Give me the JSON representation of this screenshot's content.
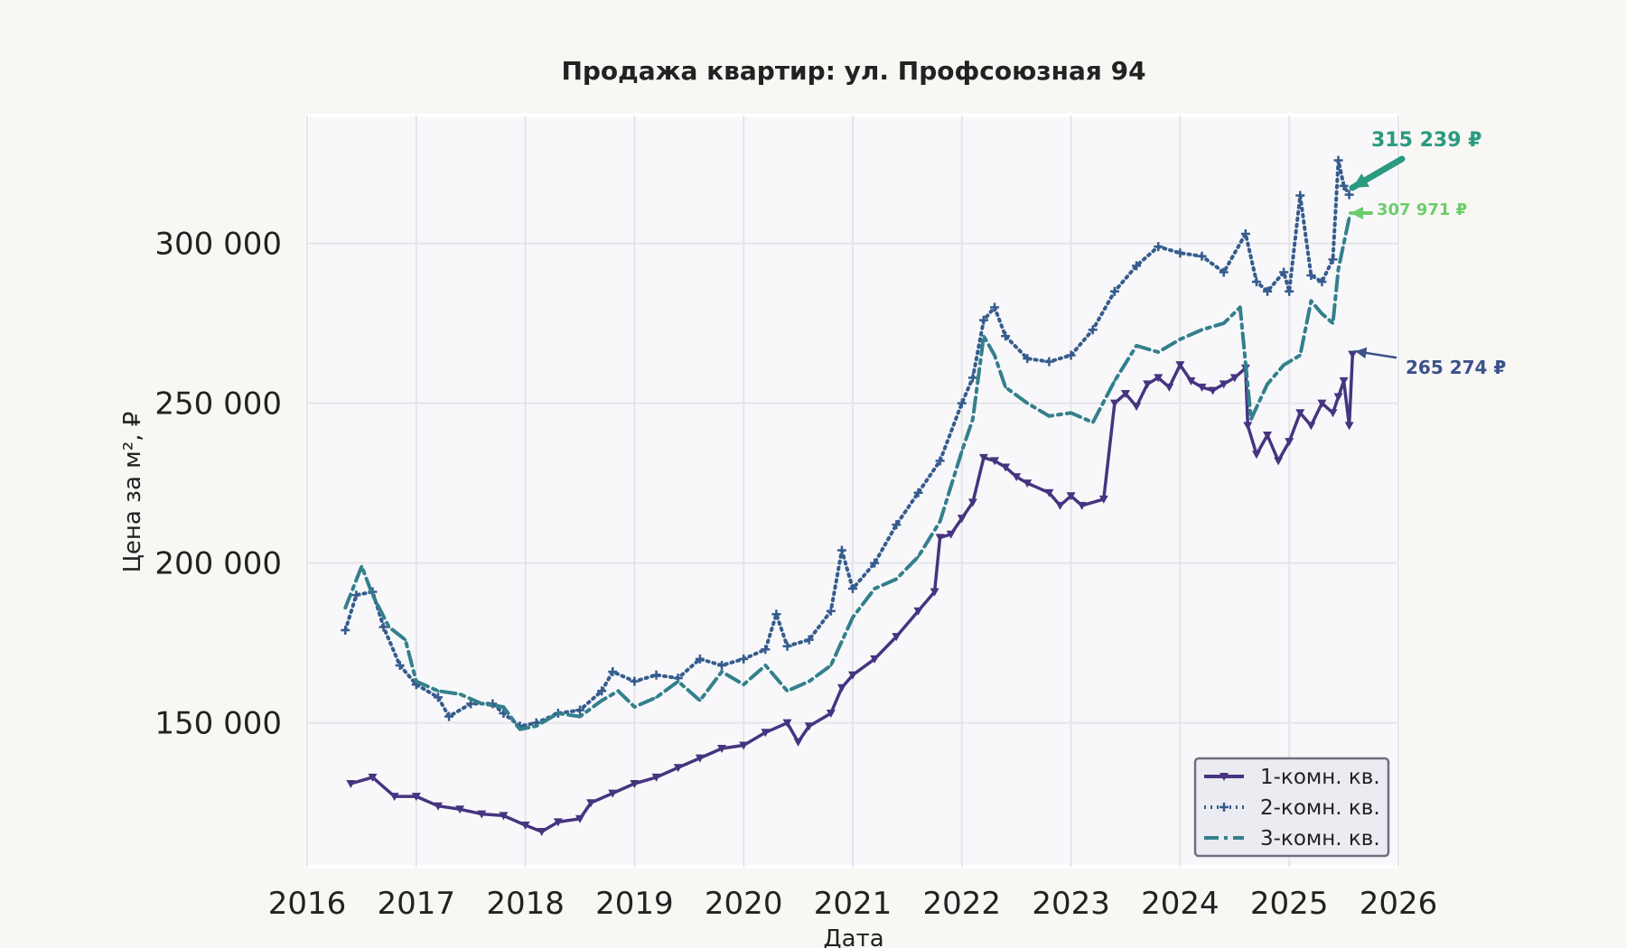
{
  "chart_data": {
    "type": "line",
    "title": "Продажа квартир: ул. Профсоюзная 94",
    "xlabel": "Дата",
    "ylabel": "Цена за м², ₽",
    "xlim": [
      2016,
      2026
    ],
    "ylim": [
      105000,
      340000
    ],
    "x_ticks": [
      "2016",
      "2017",
      "2018",
      "2019",
      "2020",
      "2021",
      "2022",
      "2023",
      "2024",
      "2025",
      "2026"
    ],
    "y_ticks": [
      "150 000",
      "200 000",
      "250 000",
      "300 000"
    ],
    "y_tick_values": [
      150000,
      200000,
      250000,
      300000
    ],
    "grid": true,
    "legend_position": "bottom-right",
    "series": [
      {
        "name": "1-комн. кв.",
        "color": "#463480",
        "style": "solid",
        "marker": "triangle-down",
        "points": [
          [
            2016.4,
            131000
          ],
          [
            2016.6,
            133000
          ],
          [
            2016.8,
            127000
          ],
          [
            2017.0,
            127000
          ],
          [
            2017.2,
            124000
          ],
          [
            2017.4,
            123000
          ],
          [
            2017.6,
            121500
          ],
          [
            2017.8,
            121000
          ],
          [
            2018.0,
            118000
          ],
          [
            2018.15,
            116000
          ],
          [
            2018.3,
            119000
          ],
          [
            2018.5,
            120000
          ],
          [
            2018.6,
            125000
          ],
          [
            2018.8,
            128000
          ],
          [
            2019.0,
            131000
          ],
          [
            2019.2,
            133000
          ],
          [
            2019.4,
            136000
          ],
          [
            2019.6,
            139000
          ],
          [
            2019.8,
            142000
          ],
          [
            2020.0,
            143000
          ],
          [
            2020.2,
            147000
          ],
          [
            2020.4,
            150000
          ],
          [
            2020.5,
            144000
          ],
          [
            2020.6,
            149000
          ],
          [
            2020.8,
            153000
          ],
          [
            2020.9,
            161000
          ],
          [
            2021.0,
            165000
          ],
          [
            2021.2,
            170000
          ],
          [
            2021.4,
            177000
          ],
          [
            2021.6,
            185000
          ],
          [
            2021.75,
            191000
          ],
          [
            2021.8,
            208000
          ],
          [
            2021.9,
            209000
          ],
          [
            2022.0,
            214000
          ],
          [
            2022.1,
            219000
          ],
          [
            2022.2,
            233000
          ],
          [
            2022.3,
            232000
          ],
          [
            2022.4,
            230000
          ],
          [
            2022.5,
            227000
          ],
          [
            2022.6,
            225000
          ],
          [
            2022.8,
            222000
          ],
          [
            2022.9,
            218000
          ],
          [
            2023.0,
            221000
          ],
          [
            2023.1,
            218000
          ],
          [
            2023.3,
            220000
          ],
          [
            2023.4,
            250000
          ],
          [
            2023.5,
            253000
          ],
          [
            2023.6,
            249000
          ],
          [
            2023.7,
            256000
          ],
          [
            2023.8,
            258000
          ],
          [
            2023.9,
            255000
          ],
          [
            2024.0,
            262000
          ],
          [
            2024.1,
            257000
          ],
          [
            2024.2,
            255000
          ],
          [
            2024.3,
            254000
          ],
          [
            2024.4,
            256000
          ],
          [
            2024.5,
            258000
          ],
          [
            2024.6,
            261000
          ],
          [
            2024.62,
            243000
          ],
          [
            2024.7,
            234000
          ],
          [
            2024.8,
            240000
          ],
          [
            2024.9,
            232000
          ],
          [
            2025.0,
            238000
          ],
          [
            2025.1,
            247000
          ],
          [
            2025.2,
            243000
          ],
          [
            2025.3,
            250000
          ],
          [
            2025.4,
            247000
          ],
          [
            2025.45,
            252000
          ],
          [
            2025.5,
            257000
          ],
          [
            2025.55,
            243000
          ],
          [
            2025.58,
            265274
          ]
        ]
      },
      {
        "name": "2-комн. кв.",
        "color": "#365c8d",
        "style": "dotted",
        "marker": "plus",
        "points": [
          [
            2016.35,
            179000
          ],
          [
            2016.45,
            190000
          ],
          [
            2016.6,
            191000
          ],
          [
            2016.7,
            180000
          ],
          [
            2016.85,
            168000
          ],
          [
            2017.0,
            162000
          ],
          [
            2017.2,
            158000
          ],
          [
            2017.3,
            152000
          ],
          [
            2017.5,
            156000
          ],
          [
            2017.7,
            156000
          ],
          [
            2017.8,
            153000
          ],
          [
            2017.95,
            149000
          ],
          [
            2018.1,
            150000
          ],
          [
            2018.3,
            153000
          ],
          [
            2018.5,
            154000
          ],
          [
            2018.7,
            160000
          ],
          [
            2018.8,
            166000
          ],
          [
            2019.0,
            163000
          ],
          [
            2019.2,
            165000
          ],
          [
            2019.4,
            164000
          ],
          [
            2019.6,
            170000
          ],
          [
            2019.8,
            168000
          ],
          [
            2020.0,
            170000
          ],
          [
            2020.2,
            173000
          ],
          [
            2020.3,
            184000
          ],
          [
            2020.4,
            174000
          ],
          [
            2020.6,
            176000
          ],
          [
            2020.8,
            185000
          ],
          [
            2020.9,
            204000
          ],
          [
            2021.0,
            192000
          ],
          [
            2021.2,
            200000
          ],
          [
            2021.4,
            212000
          ],
          [
            2021.6,
            222000
          ],
          [
            2021.8,
            232000
          ],
          [
            2022.0,
            250000
          ],
          [
            2022.1,
            258000
          ],
          [
            2022.2,
            276000
          ],
          [
            2022.3,
            280000
          ],
          [
            2022.4,
            271000
          ],
          [
            2022.6,
            264000
          ],
          [
            2022.8,
            263000
          ],
          [
            2023.0,
            265000
          ],
          [
            2023.2,
            273000
          ],
          [
            2023.4,
            285000
          ],
          [
            2023.6,
            293000
          ],
          [
            2023.8,
            299000
          ],
          [
            2024.0,
            297000
          ],
          [
            2024.2,
            296000
          ],
          [
            2024.4,
            291000
          ],
          [
            2024.6,
            303000
          ],
          [
            2024.7,
            288000
          ],
          [
            2024.8,
            285000
          ],
          [
            2024.95,
            291000
          ],
          [
            2025.0,
            285000
          ],
          [
            2025.1,
            315000
          ],
          [
            2025.2,
            290000
          ],
          [
            2025.3,
            288000
          ],
          [
            2025.4,
            295000
          ],
          [
            2025.45,
            326000
          ],
          [
            2025.5,
            318000
          ],
          [
            2025.55,
            315239
          ]
        ]
      },
      {
        "name": "3-комн. кв.",
        "color": "#33808c",
        "style": "dashdot",
        "marker": "none",
        "points": [
          [
            2016.35,
            186000
          ],
          [
            2016.5,
            199000
          ],
          [
            2016.6,
            190000
          ],
          [
            2016.75,
            180000
          ],
          [
            2016.9,
            176000
          ],
          [
            2017.0,
            163000
          ],
          [
            2017.2,
            160000
          ],
          [
            2017.4,
            159000
          ],
          [
            2017.6,
            156000
          ],
          [
            2017.8,
            155000
          ],
          [
            2017.95,
            148000
          ],
          [
            2018.1,
            149000
          ],
          [
            2018.3,
            153000
          ],
          [
            2018.5,
            152000
          ],
          [
            2018.7,
            157000
          ],
          [
            2018.85,
            160000
          ],
          [
            2019.0,
            155000
          ],
          [
            2019.2,
            158000
          ],
          [
            2019.4,
            163000
          ],
          [
            2019.6,
            157000
          ],
          [
            2019.8,
            166000
          ],
          [
            2020.0,
            162000
          ],
          [
            2020.2,
            168000
          ],
          [
            2020.4,
            160000
          ],
          [
            2020.6,
            163000
          ],
          [
            2020.8,
            168000
          ],
          [
            2021.0,
            183000
          ],
          [
            2021.2,
            192000
          ],
          [
            2021.4,
            195000
          ],
          [
            2021.6,
            202000
          ],
          [
            2021.8,
            213000
          ],
          [
            2022.0,
            235000
          ],
          [
            2022.1,
            245000
          ],
          [
            2022.2,
            271000
          ],
          [
            2022.3,
            265000
          ],
          [
            2022.4,
            255000
          ],
          [
            2022.6,
            250000
          ],
          [
            2022.8,
            246000
          ],
          [
            2023.0,
            247000
          ],
          [
            2023.2,
            244000
          ],
          [
            2023.4,
            257000
          ],
          [
            2023.6,
            268000
          ],
          [
            2023.8,
            266000
          ],
          [
            2024.0,
            270000
          ],
          [
            2024.2,
            273000
          ],
          [
            2024.4,
            275000
          ],
          [
            2024.55,
            280000
          ],
          [
            2024.65,
            245000
          ],
          [
            2024.8,
            256000
          ],
          [
            2024.95,
            262000
          ],
          [
            2025.1,
            265000
          ],
          [
            2025.2,
            282000
          ],
          [
            2025.3,
            278000
          ],
          [
            2025.4,
            275000
          ],
          [
            2025.45,
            292000
          ],
          [
            2025.5,
            300000
          ],
          [
            2025.55,
            307971
          ]
        ]
      }
    ],
    "annotations": [
      {
        "text": "315 239 ₽",
        "color": "#2a9a80",
        "series": "2-комн. кв."
      },
      {
        "text": "307 971 ₽",
        "color": "#6ccd6a",
        "series": "3-комн. кв."
      },
      {
        "text": "265 274 ₽",
        "color": "#3b528b",
        "series": "1-комн. кв."
      }
    ]
  }
}
